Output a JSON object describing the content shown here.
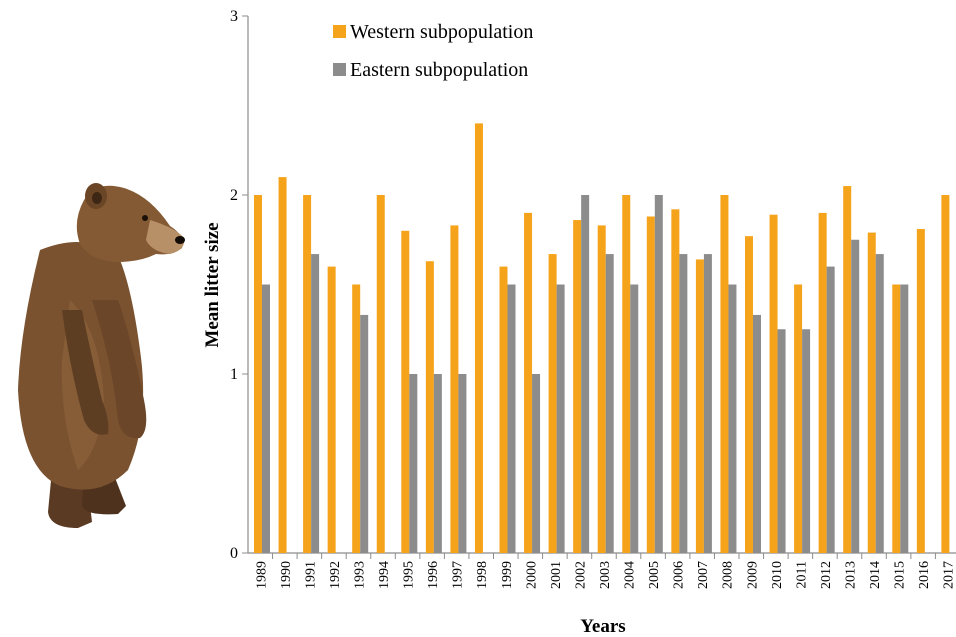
{
  "chart_data": {
    "type": "bar",
    "xlabel": "Years",
    "ylabel": "Mean litter size",
    "ylim": [
      0,
      3
    ],
    "yticks": [
      "0",
      "1",
      "2",
      "3"
    ],
    "grid": false,
    "legend_position": "top-left",
    "categories": [
      "1989",
      "1990",
      "1991",
      "1992",
      "1993",
      "1994",
      "1995",
      "1996",
      "1997",
      "1998",
      "1999",
      "2000",
      "2001",
      "2002",
      "2003",
      "2004",
      "2005",
      "2006",
      "2007",
      "2008",
      "2009",
      "2010",
      "2011",
      "2012",
      "2013",
      "2014",
      "2015",
      "2016",
      "2017"
    ],
    "series": [
      {
        "name": "Western subpopulation",
        "color": "#F5A31A",
        "values": [
          2.0,
          2.1,
          2.0,
          1.6,
          1.5,
          2.0,
          1.8,
          1.63,
          1.83,
          2.4,
          1.6,
          1.9,
          1.67,
          1.86,
          1.83,
          2.0,
          1.88,
          1.92,
          1.64,
          2.0,
          1.77,
          1.89,
          1.5,
          1.9,
          2.05,
          1.79,
          1.5,
          1.81,
          2.0
        ]
      },
      {
        "name": "Eastern subpopulation",
        "color": "#8C8C8C",
        "values": [
          1.5,
          null,
          1.67,
          null,
          1.33,
          null,
          1.0,
          1.0,
          1.0,
          null,
          1.5,
          1.0,
          1.5,
          2.0,
          1.67,
          1.5,
          2.0,
          1.67,
          1.67,
          1.5,
          1.33,
          1.25,
          1.25,
          1.6,
          1.75,
          1.67,
          1.5,
          null,
          null
        ]
      }
    ]
  },
  "illustration": {
    "icon": "brown-bear-cub-standing"
  }
}
